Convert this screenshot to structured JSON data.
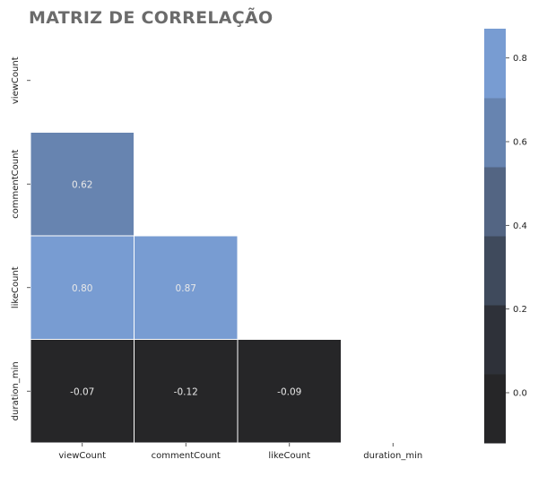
{
  "chart_data": {
    "type": "heatmap",
    "title": "MATRIZ DE CORRELAÇÃO",
    "variables": [
      "viewCount",
      "commentCount",
      "likeCount",
      "duration_min"
    ],
    "mask": "upper-triangle-including-diagonal",
    "cells": [
      {
        "row": "commentCount",
        "col": "viewCount",
        "value": 0.62,
        "label": "0.62"
      },
      {
        "row": "likeCount",
        "col": "viewCount",
        "value": 0.8,
        "label": "0.80"
      },
      {
        "row": "likeCount",
        "col": "commentCount",
        "value": 0.87,
        "label": "0.87"
      },
      {
        "row": "duration_min",
        "col": "viewCount",
        "value": -0.07,
        "label": "-0.07"
      },
      {
        "row": "duration_min",
        "col": "commentCount",
        "value": -0.12,
        "label": "-0.12"
      },
      {
        "row": "duration_min",
        "col": "likeCount",
        "value": -0.09,
        "label": "-0.09"
      }
    ],
    "colorbar": {
      "vmin": -0.12,
      "vmax": 0.87,
      "ticks": [
        0.0,
        0.2,
        0.4,
        0.6,
        0.8
      ],
      "tick_labels": [
        "0.0",
        "0.2",
        "0.4",
        "0.6",
        "0.8"
      ],
      "band_colors": [
        "#262628",
        "#2e3139",
        "#3f4a5c",
        "#536583",
        "#6784b0",
        "#789cd2"
      ]
    },
    "colors": {
      "low": "#262628",
      "high": "#789cd2",
      "grid_line": "#ffffff"
    }
  }
}
